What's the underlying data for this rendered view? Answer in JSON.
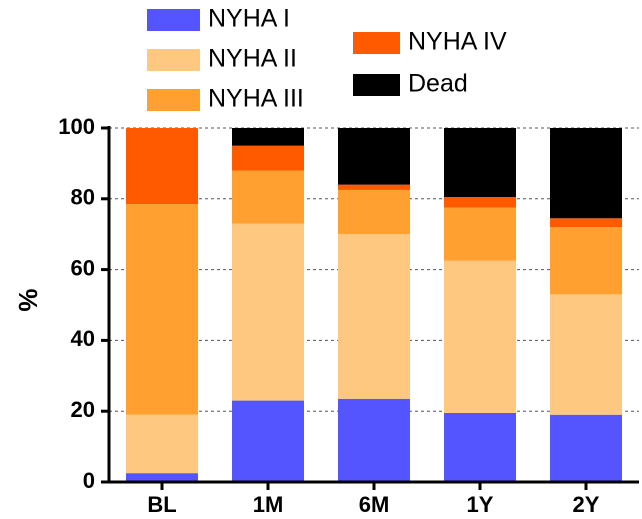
{
  "chart_data": {
    "type": "stacked-bar",
    "ylabel": "%",
    "categories": [
      "BL",
      "1M",
      "6M",
      "1Y",
      "2Y"
    ],
    "series": [
      {
        "name": "NYHA I",
        "color": "#5555ff",
        "values": [
          2.5,
          23,
          23.5,
          19.5,
          19
        ]
      },
      {
        "name": "NYHA II",
        "color": "#ffc880",
        "values": [
          16.5,
          50,
          46.5,
          43,
          34
        ]
      },
      {
        "name": "NYHA III",
        "color": "#ffa030",
        "values": [
          59.5,
          15,
          12.5,
          15,
          19
        ]
      },
      {
        "name": "NYHA IV",
        "color": "#ff5a00",
        "values": [
          21.5,
          7,
          1.5,
          3,
          2.5
        ]
      },
      {
        "name": "Dead",
        "color": "#000000",
        "values": [
          0,
          5,
          16,
          19.5,
          25.5
        ]
      }
    ],
    "ylim": [
      0,
      100
    ],
    "yticks": [
      0,
      20,
      40,
      60,
      80,
      100
    ],
    "grid": true
  }
}
